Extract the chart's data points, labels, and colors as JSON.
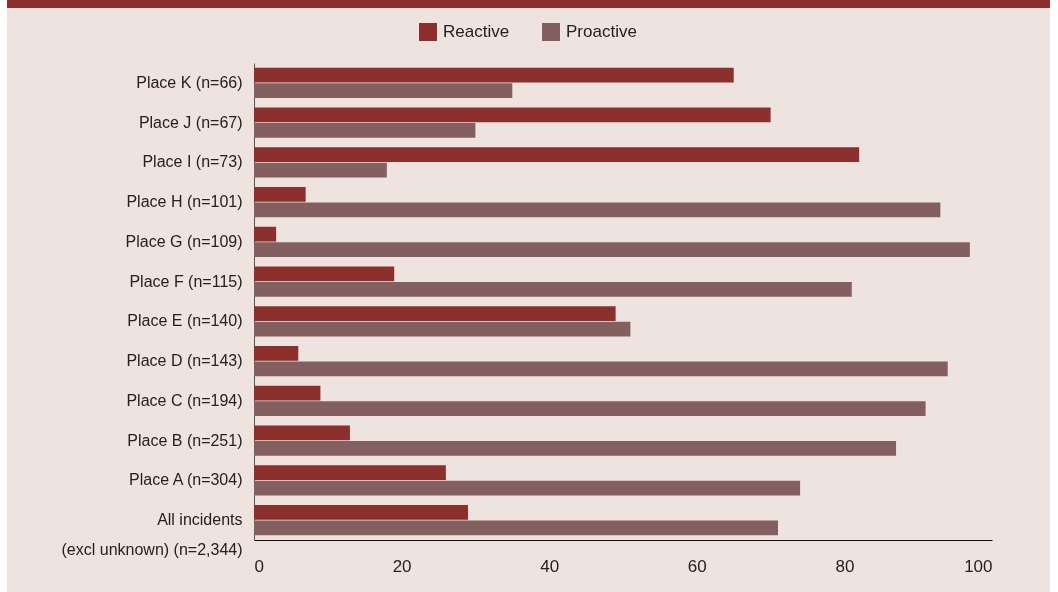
{
  "chart_data": {
    "type": "bar",
    "orientation": "horizontal",
    "categories": [
      "Place K (n=66)",
      "Place J (n=67)",
      "Place I (n=73)",
      "Place H (n=101)",
      "Place G (n=109)",
      "Place F (n=115)",
      "Place E (n=140)",
      "Place D (n=143)",
      "Place C (n=194)",
      "Place B (n=251)",
      "Place A (n=304)",
      "All incidents (excl unknown) (n=2,344)"
    ],
    "series": [
      {
        "name": "Reactive",
        "color": "#8b302c",
        "values": [
          65,
          70,
          82,
          7,
          3,
          19,
          49,
          6,
          9,
          13,
          26,
          29
        ]
      },
      {
        "name": "Proactive",
        "color": "#83605f",
        "values": [
          35,
          30,
          18,
          93,
          97,
          81,
          51,
          94,
          91,
          87,
          74,
          71
        ]
      }
    ],
    "xlim": [
      0,
      100
    ],
    "xticks": [
      0,
      20,
      40,
      60,
      80,
      100
    ],
    "legend": "top",
    "grid": false
  }
}
